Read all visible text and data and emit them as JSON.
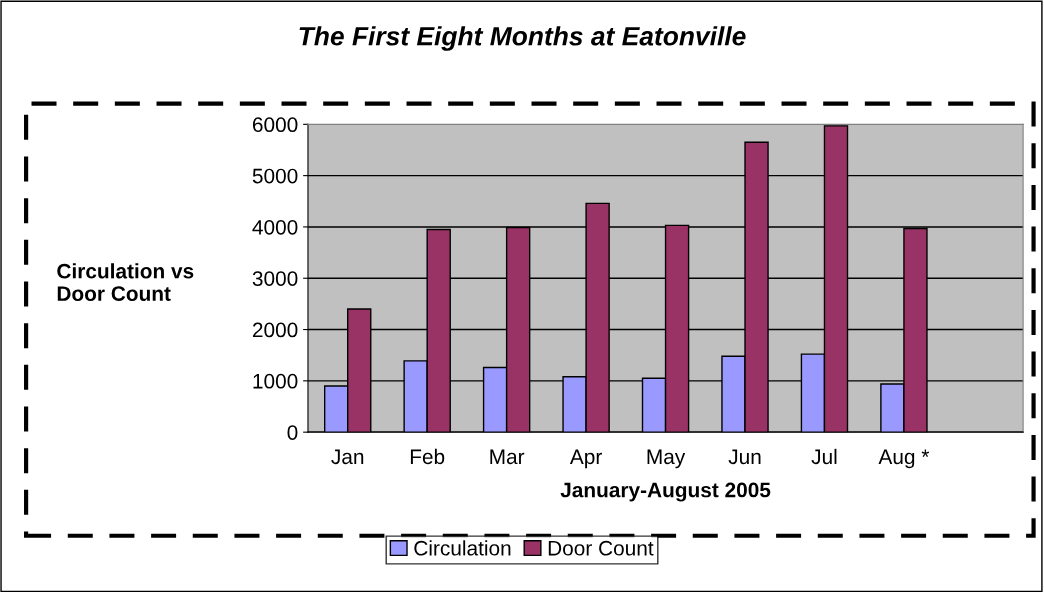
{
  "chart_data": {
    "type": "bar",
    "title": "The First Eight Months at Eatonville",
    "xlabel": "January-August 2005",
    "ylabel": "Circulation vs\nDoor Count",
    "categories": [
      "Jan",
      "Feb",
      "Mar",
      "Apr",
      "May",
      "Jun",
      "Jul",
      "Aug *"
    ],
    "series": [
      {
        "name": "Circulation",
        "color": "#9999ff",
        "values": [
          900,
          1390,
          1260,
          1080,
          1050,
          1480,
          1520,
          940
        ]
      },
      {
        "name": "Door Count",
        "color": "#993366",
        "values": [
          2400,
          3950,
          3990,
          4460,
          4030,
          5650,
          5970,
          3970
        ]
      }
    ],
    "ylim": [
      0,
      6000
    ],
    "yticks": [
      0,
      1000,
      2000,
      3000,
      4000,
      5000,
      6000
    ],
    "grid": "y",
    "legend": "bottom"
  }
}
